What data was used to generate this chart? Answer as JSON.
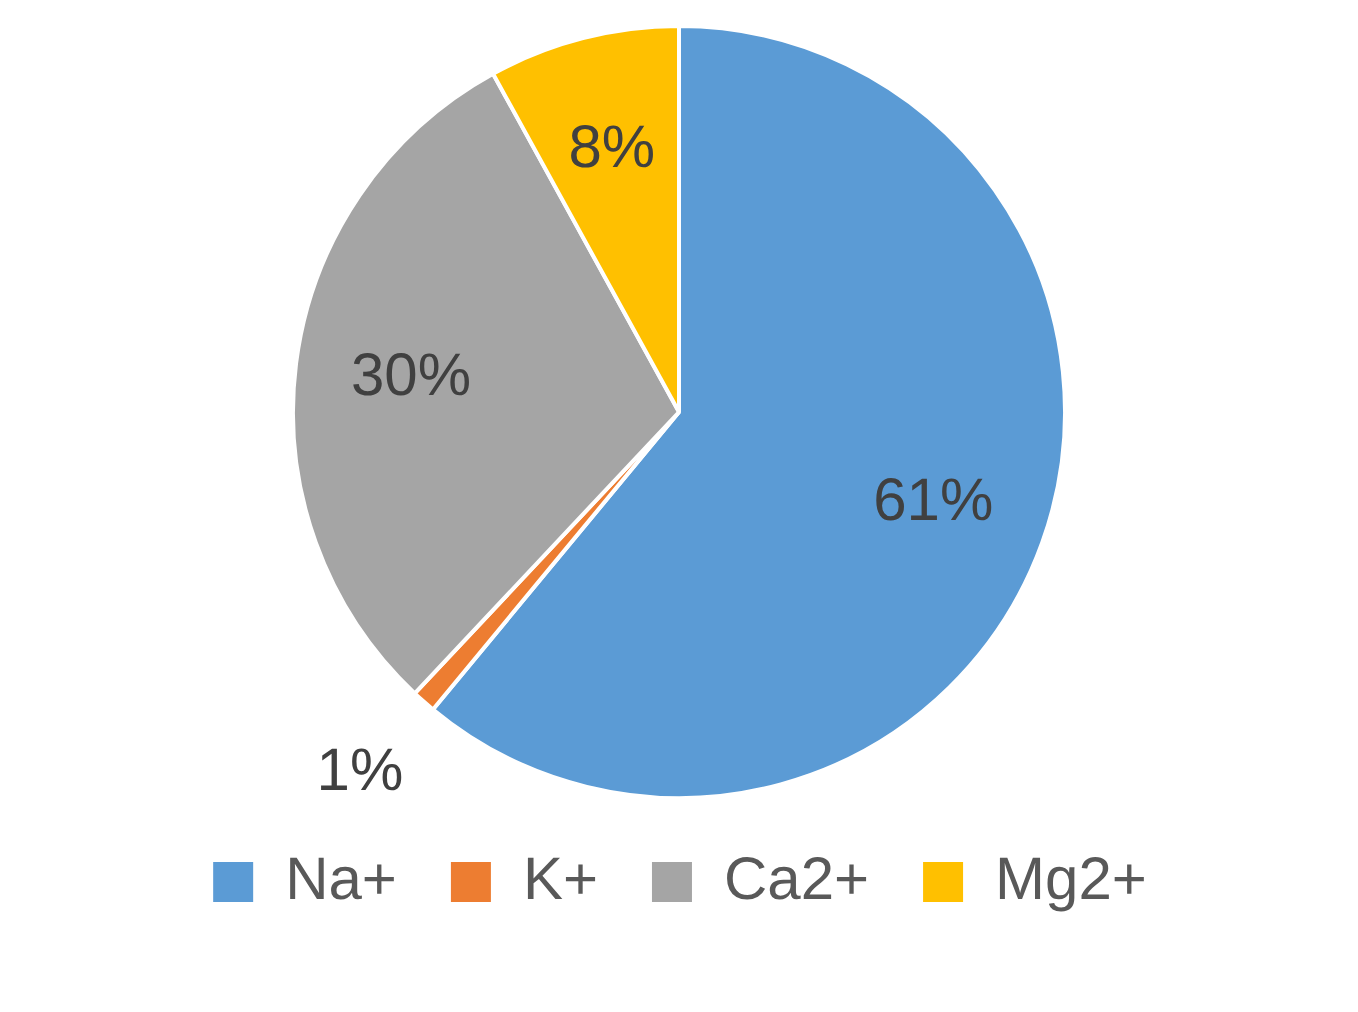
{
  "chart_data": {
    "type": "pie",
    "categories": [
      "Na+",
      "K+",
      "Ca2+",
      "Mg2+"
    ],
    "values": [
      61,
      1,
      30,
      8
    ],
    "colors": [
      "#5b9bd5",
      "#ed7d31",
      "#a5a5a5",
      "#ffc000"
    ],
    "value_labels": [
      "61%",
      "1%",
      "30%",
      "8%"
    ],
    "legend": "bottom"
  }
}
